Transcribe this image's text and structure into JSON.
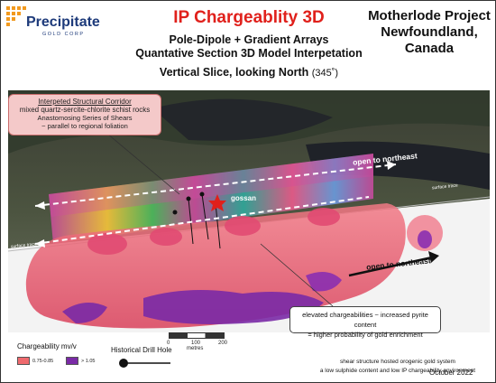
{
  "logo": {
    "word": "Precipitate",
    "sub": "GOLD CORP"
  },
  "title": "IP Chargeablity 3D",
  "subtitle1": "Pole-Dipole + Gradient Arrays",
  "subtitle2": "Quantative Section 3D Model Interpetation",
  "slice": "Vertical Slice, looking North",
  "slice_angle": "(345˚)",
  "project_line1": "Motherlode Project",
  "project_line2": "Newfoundland, Canada",
  "callout": {
    "line1": "Interpeted Structural Corridor",
    "line2": "mixed quartz-sercite-chlorite schist rocks",
    "line3": "Anastomosing Series of Shears",
    "line4": "~ parallel to regional foliation"
  },
  "labels": {
    "open_northeast_1": "open to northeast",
    "open_northeast_2": "open to northeast",
    "gossan": "gossan",
    "surface_trace_left": "surface trace",
    "surface_trace_right": "surface trace"
  },
  "callout2": {
    "line1": "elevated chargeabilities ~ increased pyrite content",
    "line2": "= higher probability of gold enrichment"
  },
  "scale": {
    "ticks": [
      "0",
      "100",
      "200"
    ],
    "unit": "metres"
  },
  "legend": {
    "title": "Chargeability mv/v",
    "items": [
      {
        "label": "0.75-0.85",
        "color": "#ef6a6e"
      },
      {
        "label": "> 1.05",
        "color": "#7a2aa6"
      }
    ],
    "drill": "Historical Drill Hole"
  },
  "footer": {
    "line1": "shear structure hosted orogenic gold system",
    "line2": "a low sulphide content and low IP chargeability environment",
    "date": "October 2022"
  },
  "colors": {
    "title_red": "#e0201b",
    "logo_blue": "#1d3a7a",
    "logo_orange": "#f29a1f"
  }
}
